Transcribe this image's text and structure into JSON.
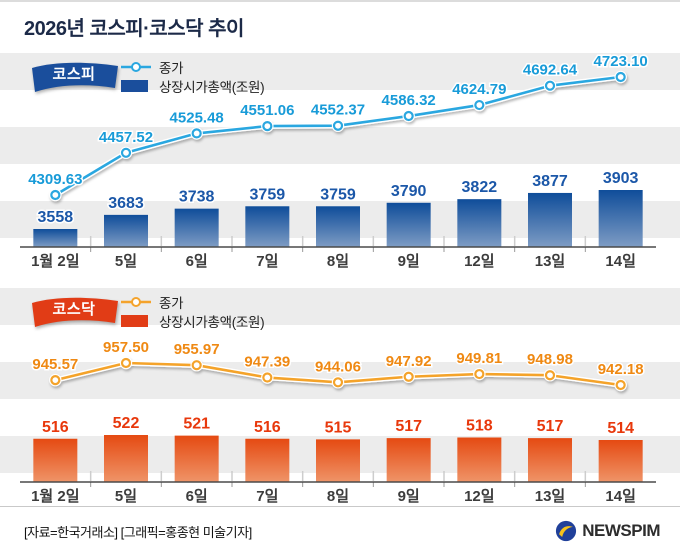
{
  "title": "2026년 코스피·코스닥 추이",
  "footer": {
    "source": "[자료=한국거래소] [그래픽=홍종현 미술기자]",
    "brand": "NEWSPIM"
  },
  "chart_data": [
    {
      "type": "bar+line",
      "name": "코스피",
      "categories": [
        "1월 2일",
        "5일",
        "6일",
        "7일",
        "8일",
        "9일",
        "12일",
        "13일",
        "14일"
      ],
      "series": [
        {
          "name": "종가",
          "type": "line",
          "decimals": 2,
          "values": [
            4309.63,
            4457.52,
            4525.48,
            4551.06,
            4552.37,
            4586.32,
            4624.79,
            4692.64,
            4723.1
          ]
        },
        {
          "name": "상장시가총액(조원)",
          "type": "bar",
          "decimals": 0,
          "values": [
            3558,
            3683,
            3738,
            3759,
            3759,
            3790,
            3822,
            3877,
            3903
          ]
        }
      ],
      "colors": {
        "ribbon": "#1a4e9c",
        "line": "#2aa7e0",
        "line_label": "#189bd8",
        "bar_top": "#0f4d9a",
        "bar_bottom": "#7e9cc4",
        "bar_label": "#1b57a8",
        "legend_bar": "#1a4e9c"
      },
      "legend_position": "top-left",
      "grid": "horizontal-stripes"
    },
    {
      "type": "bar+line",
      "name": "코스닥",
      "categories": [
        "1월 2일",
        "5일",
        "6일",
        "7일",
        "8일",
        "9일",
        "12일",
        "13일",
        "14일"
      ],
      "series": [
        {
          "name": "종가",
          "type": "line",
          "decimals": 2,
          "values": [
            945.57,
            957.5,
            955.97,
            947.39,
            944.06,
            947.92,
            949.81,
            948.98,
            942.18
          ]
        },
        {
          "name": "상장시가총액(조원)",
          "type": "bar",
          "decimals": 0,
          "values": [
            516,
            522,
            521,
            516,
            515,
            517,
            518,
            517,
            514
          ]
        }
      ],
      "colors": {
        "ribbon": "#e13c16",
        "line": "#f4a32c",
        "line_label": "#ef8913",
        "bar_top": "#e54a12",
        "bar_bottom": "#ef9468",
        "bar_label": "#e8380c",
        "legend_bar": "#e13c16"
      },
      "legend_position": "top-left",
      "grid": "horizontal-stripes"
    }
  ]
}
